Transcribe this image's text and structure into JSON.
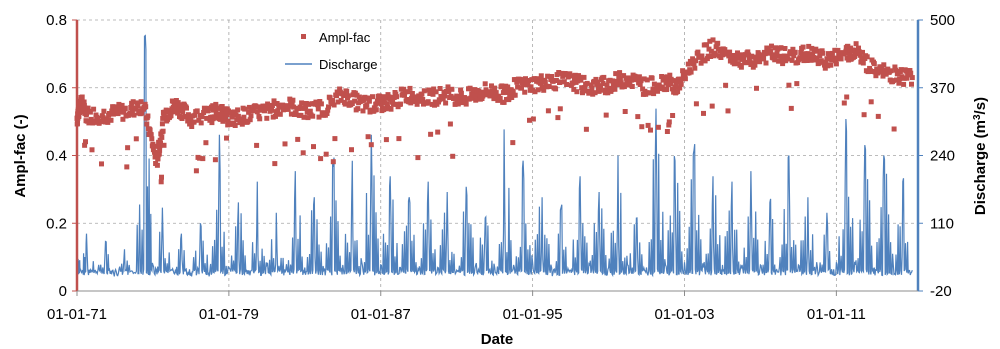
{
  "chart_data": {
    "type": "line",
    "title": "",
    "xlabel": "Date",
    "ylabel_left": "Ampl-fac (-)",
    "ylabel_right_prefix": "Discharge (m",
    "ylabel_right_sup": "3",
    "ylabel_right_suffix": "/s)",
    "x_tick_labels": [
      "01-01-71",
      "01-01-79",
      "01-01-87",
      "01-01-95",
      "01-01-03",
      "01-01-11"
    ],
    "x_tick_years": [
      1971,
      1979,
      1987,
      1995,
      2003,
      2011
    ],
    "xlim": [
      1971,
      2015.3
    ],
    "y_left_ticks": [
      "0",
      "0.2",
      "0.4",
      "0.6",
      "0.8"
    ],
    "y_left_values": [
      0,
      0.2,
      0.4,
      0.6,
      0.8
    ],
    "ylim_left": [
      0,
      0.8
    ],
    "y_right_ticks": [
      "-20",
      "110",
      "240",
      "370",
      "500"
    ],
    "y_right_values": [
      -20,
      110,
      240,
      370,
      500
    ],
    "ylim_right": [
      -20,
      500
    ],
    "grid": true,
    "legend_position": "top-center",
    "series": [
      {
        "name": "Ampl-fac",
        "axis": "left",
        "style": "markers",
        "color": "#c0504d",
        "x": [
          1971.0,
          1971.2,
          1971.5,
          1972.5,
          1973.5,
          1974.5,
          1975.2,
          1975.6,
          1976.2,
          1977.0,
          1978.0,
          1978.5,
          1979.0,
          1980.0,
          1981.0,
          1982.0,
          1983.0,
          1984.0,
          1985.0,
          1986.0,
          1986.8,
          1987.5,
          1988.5,
          1989.5,
          1990.5,
          1991.5,
          1992.5,
          1993.5,
          1994.0,
          1995.0,
          1996.0,
          1997.0,
          1998.0,
          1999.0,
          2000.0,
          2001.0,
          2002.0,
          2002.6,
          2003.5,
          2004.5,
          2005.5,
          2006.5,
          2007.5,
          2008.5,
          2009.5,
          2010.5,
          2011.5,
          2012.0,
          2013.0,
          2014.0,
          2015.0
        ],
        "values": [
          0.51,
          0.56,
          0.52,
          0.52,
          0.53,
          0.55,
          0.38,
          0.52,
          0.55,
          0.51,
          0.52,
          0.53,
          0.51,
          0.52,
          0.53,
          0.55,
          0.53,
          0.54,
          0.58,
          0.55,
          0.55,
          0.56,
          0.58,
          0.57,
          0.58,
          0.57,
          0.59,
          0.58,
          0.6,
          0.61,
          0.62,
          0.62,
          0.6,
          0.61,
          0.63,
          0.6,
          0.62,
          0.6,
          0.68,
          0.72,
          0.69,
          0.68,
          0.7,
          0.69,
          0.7,
          0.68,
          0.7,
          0.71,
          0.65,
          0.64,
          0.63
        ]
      },
      {
        "name": "Discharge",
        "axis": "right",
        "style": "line",
        "color": "#4f81bd",
        "x": [
          1971.0,
          1971.2,
          1971.5,
          1972.0,
          1972.5,
          1973.0,
          1973.5,
          1974.0,
          1974.6,
          1975.0,
          1975.5,
          1976.0,
          1976.5,
          1977.0,
          1977.5,
          1978.0,
          1978.5,
          1979.0,
          1979.5,
          1980.0,
          1980.5,
          1981.0,
          1981.5,
          1982.0,
          1982.5,
          1983.0,
          1983.5,
          1984.0,
          1984.5,
          1985.0,
          1985.5,
          1986.0,
          1986.5,
          1987.0,
          1987.5,
          1988.0,
          1988.5,
          1989.0,
          1989.5,
          1990.0,
          1990.5,
          1991.0,
          1991.5,
          1992.0,
          1992.5,
          1993.0,
          1993.5,
          1994.0,
          1994.5,
          1995.0,
          1995.5,
          1996.0,
          1996.5,
          1997.0,
          1997.5,
          1998.0,
          1998.5,
          1999.0,
          1999.5,
          2000.0,
          2000.5,
          2001.0,
          2001.5,
          2002.0,
          2002.5,
          2003.0,
          2003.5,
          2004.0,
          2004.5,
          2005.0,
          2005.5,
          2006.0,
          2006.5,
          2007.0,
          2007.5,
          2008.0,
          2008.5,
          2009.0,
          2009.5,
          2010.0,
          2010.5,
          2011.0,
          2011.5,
          2012.0,
          2012.5,
          2013.0,
          2013.5,
          2014.0,
          2014.5,
          2015.0
        ],
        "values": [
          120,
          20,
          90,
          15,
          75,
          18,
          60,
          15,
          470,
          30,
          140,
          20,
          90,
          15,
          110,
          20,
          280,
          25,
          150,
          20,
          190,
          30,
          130,
          20,
          210,
          25,
          160,
          20,
          220,
          30,
          230,
          35,
          280,
          30,
          200,
          25,
          160,
          20,
          190,
          25,
          170,
          20,
          180,
          30,
          120,
          25,
          290,
          30,
          230,
          35,
          160,
          25,
          140,
          20,
          200,
          30,
          170,
          25,
          240,
          30,
          120,
          25,
          330,
          30,
          230,
          35,
          250,
          25,
          200,
          30,
          190,
          25,
          210,
          30,
          150,
          25,
          240,
          30,
          160,
          25,
          130,
          35,
          310,
          30,
          260,
          25,
          240,
          30,
          190,
          20
        ]
      }
    ]
  }
}
